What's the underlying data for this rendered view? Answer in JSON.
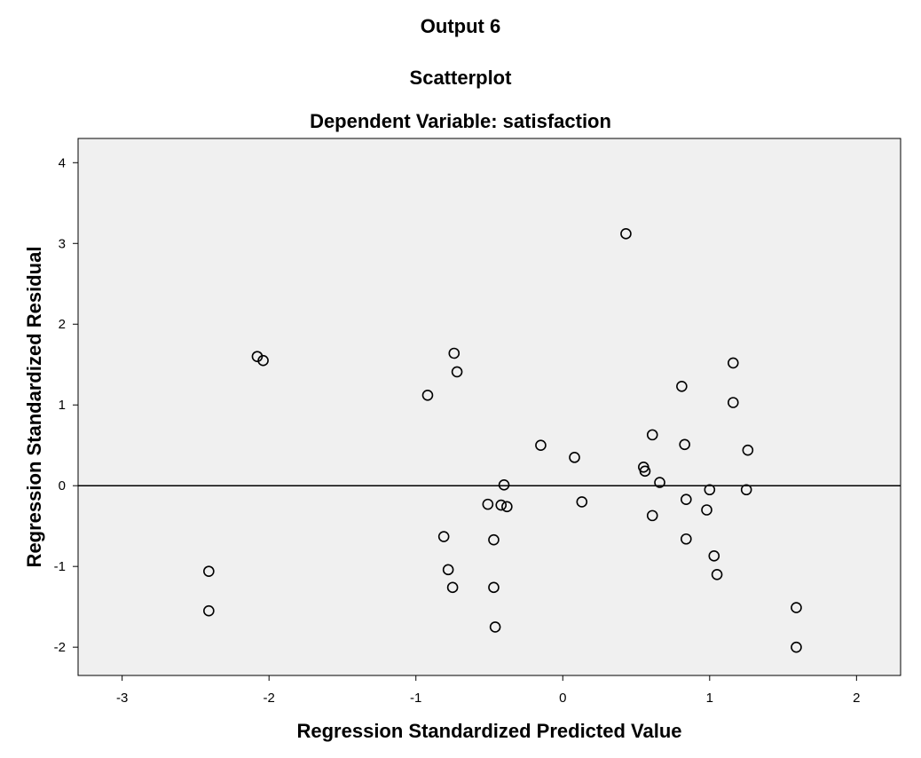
{
  "heading": {
    "output_label": "Output 6"
  },
  "chart_data": {
    "type": "scatter",
    "title": "Scatterplot",
    "subtitle": "Dependent Variable: satisfaction",
    "xlabel": "Regression Standardized Predicted Value",
    "ylabel": "Regression Standardized Residual",
    "xlim": [
      -3.3,
      2.3
    ],
    "ylim": [
      -2.35,
      4.3
    ],
    "xticks": [
      -3,
      -2,
      -1,
      0,
      1,
      2
    ],
    "yticks": [
      -2,
      -1,
      0,
      1,
      2,
      3,
      4
    ],
    "reference_line_y": 0,
    "grid": false,
    "legend": "none",
    "plot_background": "#f0f0f0",
    "marker_color": "#000000",
    "points": [
      [
        0.43,
        3.12
      ],
      [
        -2.08,
        1.6
      ],
      [
        -2.04,
        1.55
      ],
      [
        -0.74,
        1.64
      ],
      [
        -0.72,
        1.41
      ],
      [
        -0.92,
        1.12
      ],
      [
        1.16,
        1.52
      ],
      [
        0.81,
        1.23
      ],
      [
        1.16,
        1.03
      ],
      [
        0.61,
        0.63
      ],
      [
        0.83,
        0.51
      ],
      [
        1.26,
        0.44
      ],
      [
        -0.15,
        0.5
      ],
      [
        0.08,
        0.35
      ],
      [
        0.55,
        0.23
      ],
      [
        0.56,
        0.18
      ],
      [
        0.66,
        0.04
      ],
      [
        -0.4,
        0.01
      ],
      [
        1.0,
        -0.05
      ],
      [
        1.25,
        -0.05
      ],
      [
        -0.51,
        -0.23
      ],
      [
        -0.42,
        -0.24
      ],
      [
        -0.38,
        -0.26
      ],
      [
        0.13,
        -0.2
      ],
      [
        0.84,
        -0.17
      ],
      [
        0.98,
        -0.3
      ],
      [
        0.61,
        -0.37
      ],
      [
        -0.81,
        -0.63
      ],
      [
        -0.47,
        -0.67
      ],
      [
        0.84,
        -0.66
      ],
      [
        -0.78,
        -1.04
      ],
      [
        1.03,
        -0.87
      ],
      [
        1.05,
        -1.1
      ],
      [
        -0.75,
        -1.26
      ],
      [
        -0.47,
        -1.26
      ],
      [
        -2.41,
        -1.06
      ],
      [
        -2.41,
        -1.55
      ],
      [
        1.59,
        -1.51
      ],
      [
        -0.46,
        -1.75
      ],
      [
        1.59,
        -2.0
      ]
    ]
  }
}
